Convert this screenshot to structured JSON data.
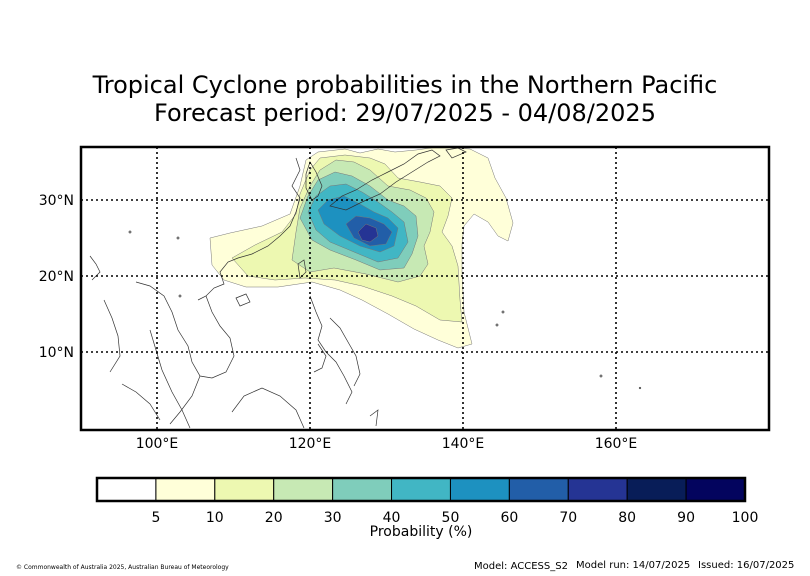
{
  "title": {
    "line1": "Tropical Cyclone probabilities in the Northern Pacific",
    "line2": "Forecast period: 29/07/2025 - 04/08/2025"
  },
  "map": {
    "lon_ticks": [
      "100°E",
      "120°E",
      "140°E",
      "160°E"
    ],
    "lat_ticks": [
      "30°N",
      "20°N",
      "10°N"
    ],
    "grid": "dotted",
    "extent": {
      "lon": [
        90,
        180
      ],
      "lat": [
        0,
        37
      ]
    }
  },
  "colorbar": {
    "label": "Probability (%)",
    "ticks": [
      "5",
      "10",
      "20",
      "30",
      "40",
      "50",
      "60",
      "70",
      "80",
      "90",
      "100"
    ],
    "colors": [
      "#ffffff",
      "#ffffd9",
      "#edf8b1",
      "#c7e9b4",
      "#7fcdbb",
      "#41b6c4",
      "#1d91c0",
      "#225ea8",
      "#253494",
      "#081d58",
      "#03045e"
    ]
  },
  "footer": {
    "copyright": "© Commonwealth of Australia 2025, Australian Bureau of Meteorology",
    "model": "Model: ACCESS_S2",
    "run": "Model run: 14/07/2025",
    "issued": "Issued: 16/07/2025"
  }
}
